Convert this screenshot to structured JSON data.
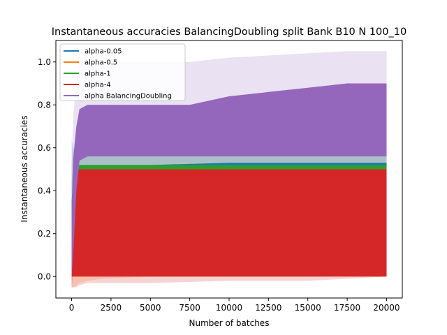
{
  "chart_data": {
    "type": "area",
    "title": "Instantaneous accuracies BalancingDoubling split Bank B10 N 100_10",
    "xlabel": "Number of batches",
    "ylabel": "Instantaneous accuracies",
    "xlim": [
      -1000,
      21000
    ],
    "ylim": [
      -0.1,
      1.1
    ],
    "xticks": [
      0,
      2500,
      5000,
      7500,
      10000,
      12500,
      15000,
      17500,
      20000
    ],
    "yticks": [
      0.0,
      0.2,
      0.4,
      0.6,
      0.8,
      1.0
    ],
    "grid": false,
    "legend_position": "upper-left",
    "series": [
      {
        "name": "alpha-0.05",
        "color": "#1f77b4",
        "x": [
          0,
          100,
          300,
          500,
          1000,
          2000,
          5000,
          10000,
          15000,
          20000
        ],
        "lower": [
          0.0,
          0.08,
          0.3,
          0.4,
          0.42,
          0.42,
          0.42,
          0.43,
          0.43,
          0.43
        ],
        "upper": [
          0.3,
          0.45,
          0.48,
          0.5,
          0.52,
          0.52,
          0.52,
          0.53,
          0.53,
          0.53
        ],
        "band_lower": [
          -0.05,
          0.0,
          0.25,
          0.35,
          0.38,
          0.38,
          0.38,
          0.38,
          0.38,
          0.38
        ],
        "band_upper": [
          0.64,
          0.6,
          0.58,
          0.58,
          0.58,
          0.58,
          0.58,
          0.58,
          0.58,
          0.58
        ]
      },
      {
        "name": "alpha-0.5",
        "color": "#ff7f0e",
        "x": [
          0,
          100,
          300,
          500,
          1000,
          2000,
          5000,
          10000,
          15000,
          20000
        ],
        "lower": [
          0.0,
          0.0,
          0.0,
          0.0,
          0.0,
          0.0,
          0.0,
          0.0,
          0.0,
          0.0
        ],
        "upper": [
          0.0,
          0.0,
          0.01,
          0.01,
          0.02,
          0.03,
          0.08,
          0.14,
          0.2,
          0.26
        ],
        "band_lower": [
          -0.05,
          -0.05,
          -0.04,
          -0.03,
          -0.02,
          -0.01,
          0.0,
          0.0,
          0.0,
          0.0
        ],
        "band_upper": [
          0.0,
          0.01,
          0.02,
          0.03,
          0.05,
          0.07,
          0.14,
          0.2,
          0.26,
          0.31
        ]
      },
      {
        "name": "alpha-1",
        "color": "#2ca02c",
        "x": [
          0,
          100,
          300,
          500,
          1000,
          2000,
          5000,
          10000,
          15000,
          20000
        ],
        "lower": [
          0.0,
          0.05,
          0.2,
          0.3,
          0.34,
          0.34,
          0.34,
          0.35,
          0.35,
          0.35
        ],
        "upper": [
          0.35,
          0.45,
          0.5,
          0.52,
          0.52,
          0.52,
          0.52,
          0.52,
          0.52,
          0.52
        ],
        "band_lower": [
          0.0,
          0.0,
          0.1,
          0.2,
          0.3,
          0.32,
          0.32,
          0.32,
          0.32,
          0.32
        ],
        "band_upper": [
          0.45,
          0.5,
          0.55,
          0.56,
          0.56,
          0.56,
          0.56,
          0.56,
          0.56,
          0.56
        ]
      },
      {
        "name": "alpha-4",
        "color": "#d62728",
        "x": [
          0,
          100,
          300,
          500,
          1000,
          2000,
          5000,
          10000,
          15000,
          20000
        ],
        "lower": [
          0.0,
          0.0,
          0.0,
          0.0,
          0.0,
          0.0,
          0.0,
          0.0,
          0.0,
          0.0
        ],
        "upper": [
          0.0,
          0.35,
          0.48,
          0.5,
          0.5,
          0.5,
          0.5,
          0.5,
          0.5,
          0.5
        ],
        "band_lower": [
          -0.05,
          -0.05,
          -0.05,
          -0.04,
          -0.03,
          -0.03,
          -0.03,
          -0.02,
          -0.02,
          0.0
        ],
        "band_upper": [
          0.0,
          0.4,
          0.5,
          0.52,
          0.52,
          0.52,
          0.52,
          0.52,
          0.52,
          0.52
        ]
      },
      {
        "name": "alpha BalancingDoubling",
        "color": "#9467bd",
        "x": [
          0,
          100,
          300,
          500,
          1000,
          2000,
          5000,
          7500,
          10000,
          12500,
          15000,
          17500,
          20000
        ],
        "lower": [
          0.0,
          0.1,
          0.4,
          0.54,
          0.56,
          0.56,
          0.56,
          0.56,
          0.56,
          0.56,
          0.56,
          0.56,
          0.56
        ],
        "upper": [
          0.3,
          0.55,
          0.7,
          0.78,
          0.8,
          0.8,
          0.8,
          0.8,
          0.84,
          0.86,
          0.88,
          0.9,
          0.9
        ],
        "band_lower": [
          0.0,
          0.05,
          0.3,
          0.45,
          0.5,
          0.52,
          0.52,
          0.52,
          0.52,
          0.52,
          0.52,
          0.52,
          0.52
        ],
        "band_upper": [
          0.5,
          0.75,
          0.9,
          1.0,
          1.0,
          1.0,
          1.0,
          1.0,
          1.02,
          1.03,
          1.04,
          1.05,
          1.05
        ]
      }
    ]
  }
}
